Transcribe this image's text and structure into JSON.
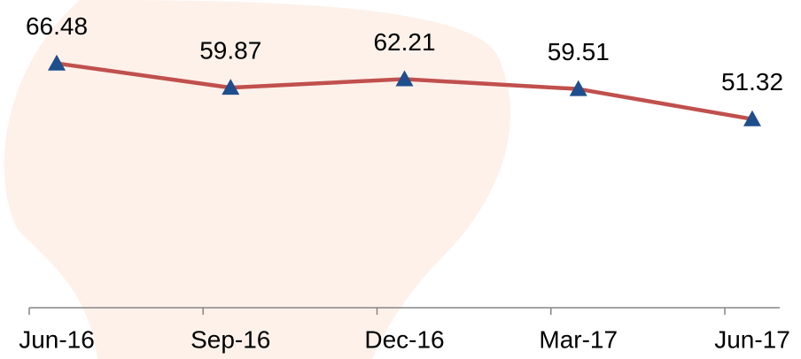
{
  "chart_data": {
    "type": "line",
    "categories": [
      "Jun-16",
      "Sep-16",
      "Dec-16",
      "Mar-17",
      "Jun-17"
    ],
    "series": [
      {
        "color": "#c0504d",
        "marker_color": "#1f4e8c",
        "values": [
          66.48,
          59.87,
          62.21,
          59.51,
          51.32
        ]
      }
    ],
    "ylim": [
      0,
      80
    ]
  }
}
